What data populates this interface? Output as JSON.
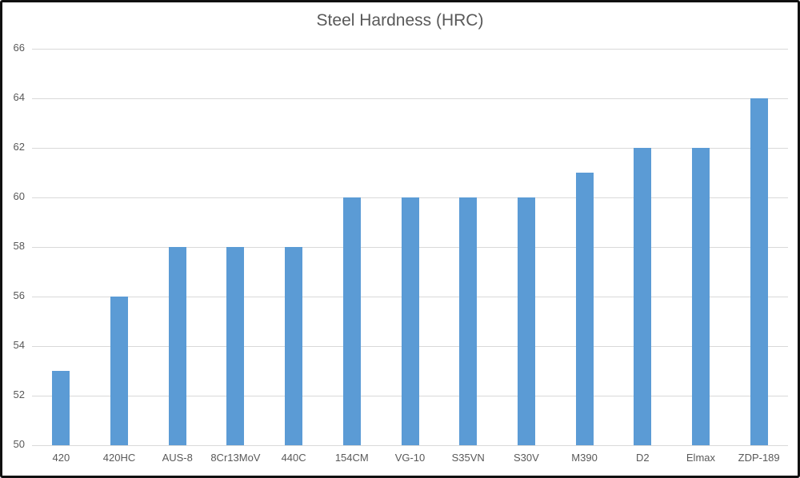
{
  "chart_data": {
    "type": "bar",
    "title": "Steel Hardness (HRC)",
    "categories": [
      "420",
      "420HC",
      "AUS-8",
      "8Cr13MoV",
      "440C",
      "154CM",
      "VG-10",
      "S35VN",
      "S30V",
      "M390",
      "D2",
      "Elmax",
      "ZDP-189"
    ],
    "values": [
      53,
      56,
      58,
      58,
      58,
      60,
      60,
      60,
      60,
      61,
      62,
      62,
      64
    ],
    "xlabel": "",
    "ylabel": "",
    "ylim": [
      50,
      66
    ],
    "ytick_step": 2,
    "grid": true,
    "legend": "none",
    "colors": {
      "bar": "#5B9BD5",
      "gridline": "#D9D9D9",
      "axis_line": "#D9D9D9",
      "tick_text": "#595959",
      "title_text": "#595959",
      "background": "#FFFFFF",
      "frame_border": "#111111"
    }
  }
}
